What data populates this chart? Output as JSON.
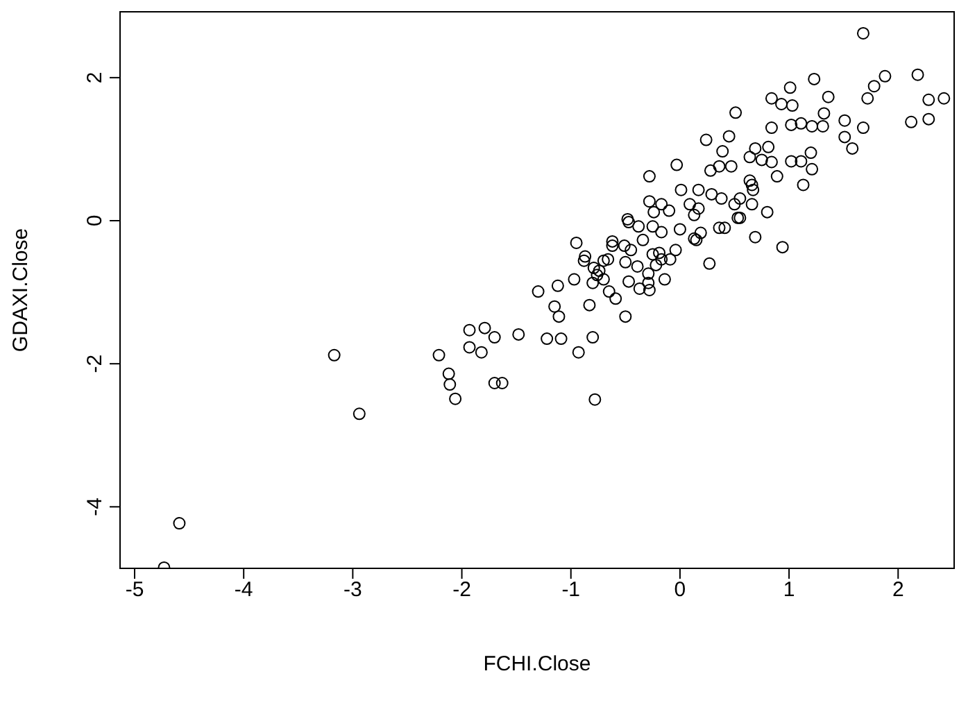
{
  "chart_data": {
    "type": "scatter",
    "xlabel": "FCHI.Close",
    "ylabel": "GDAXI.Close",
    "marker": "circle",
    "grid": false,
    "legend": false,
    "xlim": [
      -5.14,
      2.52
    ],
    "ylim": [
      -4.87,
      2.93
    ],
    "xticks": [
      -5,
      -4,
      -3,
      -2,
      -1,
      0,
      1,
      2
    ],
    "yticks": [
      -4,
      -2,
      0,
      2
    ],
    "series": [
      {
        "color": "#000000",
        "x": [
          -4.73,
          -4.59,
          -3.17,
          -2.94,
          -2.21,
          -2.12,
          -2.11,
          -2.06,
          -1.93,
          -1.93,
          -1.79,
          -1.82,
          -1.7,
          -1.7,
          -1.63,
          -1.48,
          -1.3,
          -1.22,
          -1.12,
          -1.15,
          -1.11,
          -1.09,
          -0.97,
          -0.95,
          -0.93,
          -0.83,
          -0.8,
          -0.8,
          -0.78,
          -0.87,
          -0.88,
          -0.79,
          -0.74,
          -0.7,
          -0.66,
          -0.7,
          -0.76,
          -0.65,
          -0.59,
          -0.5,
          -0.62,
          -0.62,
          -0.51,
          -0.45,
          -0.5,
          -0.39,
          -0.47,
          -0.37,
          -0.28,
          -0.29,
          -0.29,
          -0.14,
          -0.22,
          -0.17,
          -0.09,
          -0.04,
          -0.19,
          -0.25,
          -0.47,
          -0.38,
          -0.34,
          -0.25,
          -0.17,
          0,
          0.13,
          0.15,
          0.19,
          0.27,
          0.36,
          0.41,
          0.53,
          0.69,
          0.94,
          0.8,
          1.68,
          1.88,
          2.18,
          1.78,
          1.72,
          2.28,
          2.42,
          2.12,
          2.28,
          1.23,
          1.01,
          1.36,
          0.84,
          0.93,
          1.03,
          1.32,
          0.51,
          1.51,
          1.02,
          1.11,
          1.21,
          1.31,
          1.68,
          0.84,
          1.51,
          1.58,
          0.24,
          0.45,
          0.39,
          0.81,
          0.69,
          1.2,
          1.02,
          1.11,
          1.21,
          1.13,
          0.84,
          0.89,
          0.75,
          0.64,
          -0.03,
          -0.28,
          0.01,
          0.28,
          0.36,
          0.47,
          0.66,
          0.67,
          0.64,
          0.55,
          0.5,
          0.66,
          0.17,
          0.29,
          0.38,
          0.09,
          0.17,
          -0.28,
          -0.17,
          -0.1,
          -0.24,
          0.13,
          -0.48,
          0.55
        ],
        "values": [
          -4.85,
          -4.23,
          -1.88,
          -2.7,
          -1.88,
          -2.14,
          -2.29,
          -2.49,
          -1.53,
          -1.77,
          -1.5,
          -1.84,
          -1.63,
          -2.27,
          -2.27,
          -1.59,
          -0.99,
          -1.65,
          -0.91,
          -1.2,
          -1.34,
          -1.65,
          -0.82,
          -0.31,
          -1.84,
          -1.18,
          -0.87,
          -1.63,
          -2.5,
          -0.5,
          -0.56,
          -0.66,
          -0.7,
          -0.56,
          -0.54,
          -0.82,
          -0.76,
          -0.99,
          -1.09,
          -1.34,
          -0.29,
          -0.35,
          -0.35,
          -0.41,
          -0.58,
          -0.64,
          -0.85,
          -0.95,
          -0.97,
          -0.87,
          -0.74,
          -0.82,
          -0.62,
          -0.54,
          -0.54,
          -0.41,
          -0.45,
          -0.47,
          -0.02,
          -0.08,
          -0.27,
          -0.08,
          -0.16,
          -0.12,
          -0.25,
          -0.27,
          -0.17,
          -0.6,
          -0.1,
          -0.1,
          0.04,
          -0.23,
          -0.37,
          0.12,
          2.62,
          2.02,
          2.04,
          1.88,
          1.71,
          1.69,
          1.71,
          1.38,
          1.42,
          1.98,
          1.86,
          1.73,
          1.71,
          1.63,
          1.61,
          1.5,
          1.51,
          1.4,
          1.34,
          1.36,
          1.32,
          1.32,
          1.3,
          1.3,
          1.17,
          1.01,
          1.13,
          1.18,
          0.97,
          1.03,
          1.01,
          0.95,
          0.83,
          0.83,
          0.72,
          0.5,
          0.82,
          0.62,
          0.85,
          0.89,
          0.78,
          0.62,
          0.43,
          0.7,
          0.76,
          0.76,
          0.5,
          0.43,
          0.56,
          0.31,
          0.23,
          0.23,
          0.43,
          0.37,
          0.31,
          0.23,
          0.17,
          0.27,
          0.23,
          0.14,
          0.12,
          0.08,
          0.02,
          0.04
        ]
      }
    ]
  }
}
